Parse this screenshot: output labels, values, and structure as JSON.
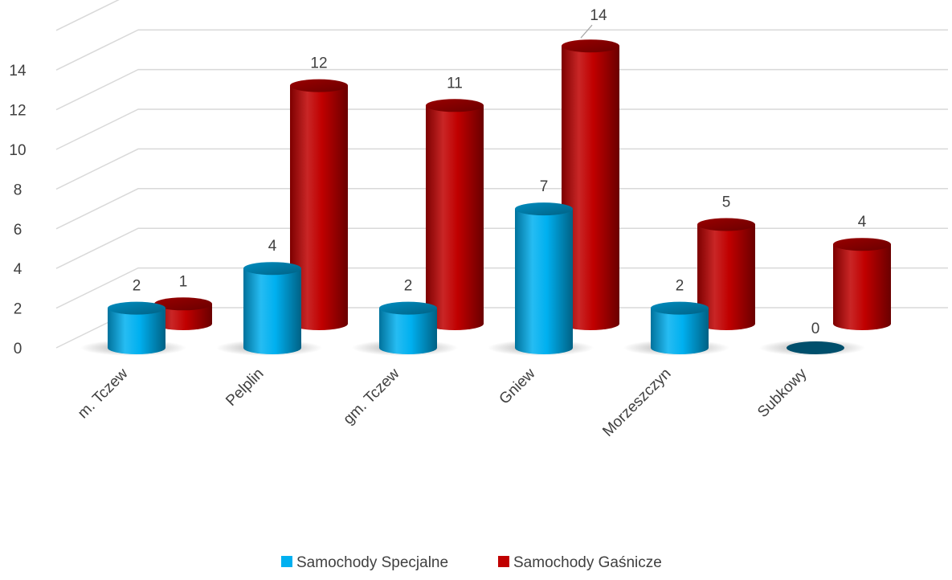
{
  "chart_data": {
    "type": "bar",
    "style": "3d-cylinder",
    "title": "",
    "xlabel": "",
    "ylabel": "",
    "categories": [
      "m. Tczew",
      "Pelplin",
      "gm. Tczew",
      "Gniew",
      "Morzeszczyn",
      "Subkowy"
    ],
    "series": [
      {
        "name": "Samochody Specjalne",
        "values": [
          2,
          4,
          2,
          7,
          2,
          0
        ],
        "color": "#00B0F0"
      },
      {
        "name": "Samochody Gaśnicze",
        "values": [
          1,
          12,
          11,
          14,
          5,
          4
        ],
        "color": "#C00000"
      }
    ],
    "yticks": [
      0,
      2,
      4,
      6,
      8,
      10,
      12,
      14
    ],
    "ylim": [
      0,
      16
    ],
    "grid": true,
    "data_labels": true,
    "legend_position": "bottom"
  }
}
